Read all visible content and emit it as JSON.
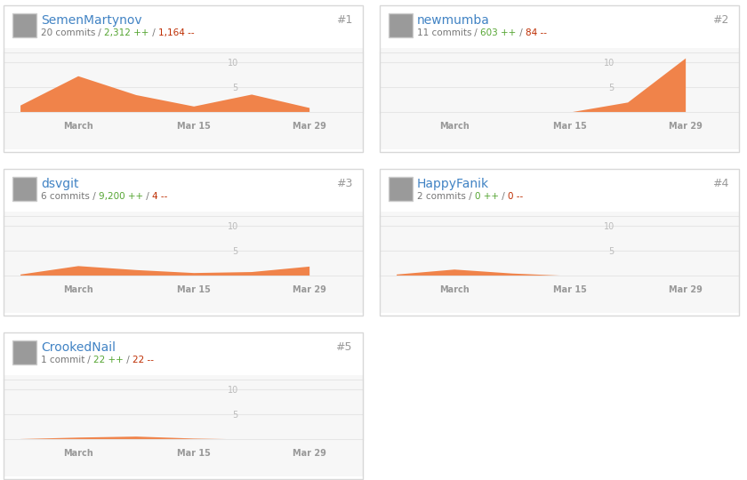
{
  "chart_data": [
    {
      "type": "area",
      "title": "SemenMartynov",
      "subtitle": "20 commits / 2,312 ++ / 1,164 --",
      "annotations": [
        "#1"
      ],
      "x": [
        -6,
        1,
        8,
        15,
        22,
        29
      ],
      "values": [
        1.4,
        7.3,
        3.5,
        1.2,
        3.6,
        0.9
      ],
      "color": "#f0834a",
      "xlim": [
        -8,
        35.5
      ],
      "xticks": [
        {
          "value": 1,
          "label": "March"
        },
        {
          "value": 15,
          "label": "Mar 15"
        },
        {
          "value": 29,
          "label": "Mar 29"
        }
      ],
      "ylim": [
        0,
        12
      ],
      "yticks": [
        5,
        10
      ],
      "grid": true
    },
    {
      "type": "area",
      "title": "newmumba",
      "subtitle": "11 commits / 603 ++ / 84 --",
      "annotations": [
        "#2"
      ],
      "x": [
        -6,
        1,
        8,
        15,
        22,
        29
      ],
      "values": [
        null,
        null,
        null,
        0,
        2,
        10.9
      ],
      "color": "#f0834a",
      "xlim": [
        -8,
        35.5
      ],
      "xticks": [
        {
          "value": 1,
          "label": "March"
        },
        {
          "value": 15,
          "label": "Mar 15"
        },
        {
          "value": 29,
          "label": "Mar 29"
        }
      ],
      "ylim": [
        0,
        12
      ],
      "yticks": [
        5,
        10
      ],
      "grid": true
    },
    {
      "type": "area",
      "title": "dsvgit",
      "subtitle": "6 commits / 9,200 ++ / 4 --",
      "annotations": [
        "#3"
      ],
      "x": [
        -6,
        1,
        8,
        15,
        22,
        29
      ],
      "values": [
        0.3,
        2.0,
        1.2,
        0.6,
        0.8,
        1.9
      ],
      "color": "#f0834a",
      "xlim": [
        -8,
        35.5
      ],
      "xticks": [
        {
          "value": 1,
          "label": "March"
        },
        {
          "value": 15,
          "label": "Mar 15"
        },
        {
          "value": 29,
          "label": "Mar 29"
        }
      ],
      "ylim": [
        0,
        12
      ],
      "yticks": [
        5,
        10
      ],
      "grid": true
    },
    {
      "type": "area",
      "title": "HappyFanik",
      "subtitle": "2 commits / 0 ++ / 0 --",
      "annotations": [
        "#4"
      ],
      "x": [
        -6,
        1,
        8,
        15,
        22,
        29
      ],
      "values": [
        0.3,
        1.3,
        0.5,
        0,
        null,
        null
      ],
      "color": "#f0834a",
      "xlim": [
        -8,
        35.5
      ],
      "xticks": [
        {
          "value": 1,
          "label": "March"
        },
        {
          "value": 15,
          "label": "Mar 15"
        },
        {
          "value": 29,
          "label": "Mar 29"
        }
      ],
      "ylim": [
        0,
        12
      ],
      "yticks": [
        5,
        10
      ],
      "grid": true
    },
    {
      "type": "area",
      "title": "CrookedNail",
      "subtitle": "1 commit / 22 ++ / 22 --",
      "annotations": [
        "#5"
      ],
      "x": [
        -6,
        1,
        8,
        15,
        22,
        29
      ],
      "values": [
        0.1,
        0.4,
        0.6,
        0.2,
        0,
        null
      ],
      "color": "#f0834a",
      "xlim": [
        -8,
        35.5
      ],
      "xticks": [
        {
          "value": 1,
          "label": "March"
        },
        {
          "value": 15,
          "label": "Mar 15"
        },
        {
          "value": 29,
          "label": "Mar 29"
        }
      ],
      "ylim": [
        0,
        12
      ],
      "yticks": [
        5,
        10
      ],
      "grid": true
    }
  ]
}
